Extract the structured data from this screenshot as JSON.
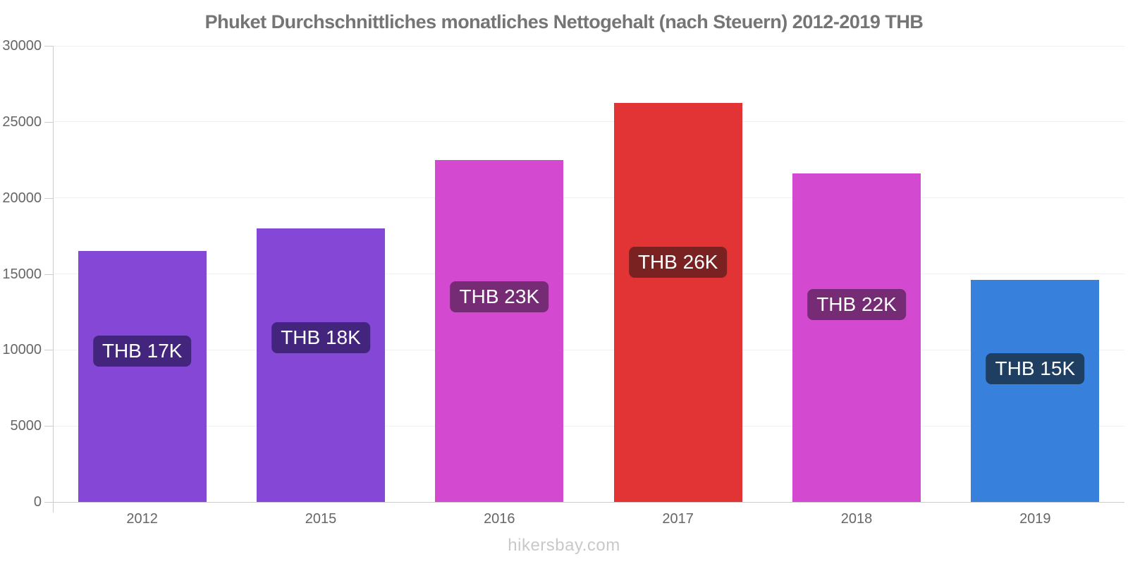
{
  "header": {
    "title": "Phuket Durchschnittliches monatliches Nettogehalt (nach Steuern) 2012-2019 THB"
  },
  "footer": {
    "watermark": "hikersbay.com"
  },
  "colors": {
    "title_text": "#757575",
    "axis_text": "#666666",
    "axis_line": "#cccccc",
    "gridline": "#f1f1f1",
    "watermark_text": "#c9c9c9",
    "bar_purple": "#8447d6",
    "bar_magenta": "#d34ad1",
    "bar_red": "#e23434",
    "bar_blue": "#3781dc"
  },
  "chart_data": {
    "type": "bar",
    "title": "Phuket Durchschnittliches monatliches Nettogehalt (nach Steuern) 2012-2019 THB",
    "xlabel": "",
    "ylabel": "",
    "categories": [
      "2012",
      "2015",
      "2016",
      "2017",
      "2018",
      "2019"
    ],
    "values": [
      16500,
      18000,
      22500,
      26250,
      21600,
      14625
    ],
    "bar_labels": [
      "THB 17K",
      "THB 18K",
      "THB 23K",
      "THB 26K",
      "THB 22K",
      "THB 15K"
    ],
    "bar_colors": [
      "#8447d6",
      "#8447d6",
      "#d34ad1",
      "#e23434",
      "#d34ad1",
      "#3781dc"
    ],
    "bar_label_bg_colors": [
      "#44257e",
      "#44257e",
      "#752c74",
      "#7a2121",
      "#752c74",
      "#1e3e62"
    ],
    "ylim": [
      0,
      30000
    ],
    "yticks": [
      0,
      5000,
      10000,
      15000,
      20000,
      25000,
      30000
    ],
    "grid": true,
    "legend": false,
    "annotations": "value labels shown as rounded badges centered inside each bar"
  }
}
